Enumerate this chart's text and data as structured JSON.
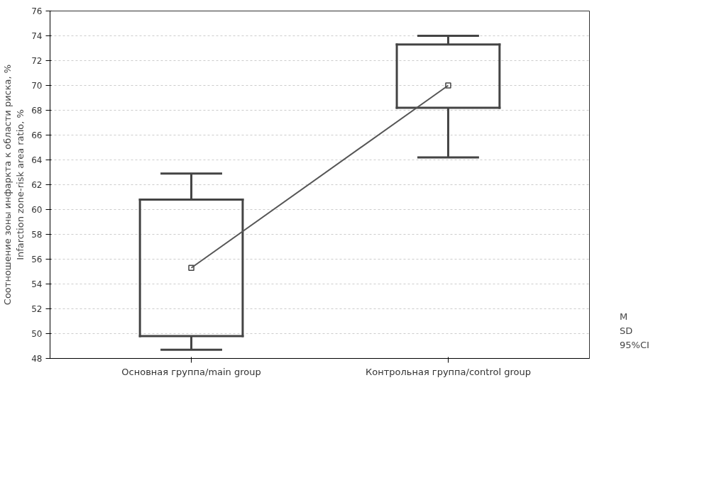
{
  "chart_data": {
    "type": "box",
    "ylabel": "Соотношение зоны инфаркта к области риска, %\nInfarction zone-risk area ratio, %",
    "categories": [
      "Основная группа/main group",
      "Контрольная группа/control group"
    ],
    "boxes": [
      {
        "low": 48.7,
        "q1": 49.8,
        "median": 55.3,
        "q3": 60.8,
        "high": 62.9
      },
      {
        "low": 64.2,
        "q1": 68.2,
        "median": 70.0,
        "q3": 73.3,
        "high": 74.0
      }
    ],
    "series": [
      {
        "name": "M",
        "type": "line",
        "color": "#555555",
        "values": [
          55.3,
          70.0
        ]
      }
    ],
    "color": "#444444",
    "ylim": [
      48,
      76
    ],
    "yticks": [
      48,
      50,
      52,
      54,
      56,
      58,
      60,
      62,
      64,
      66,
      68,
      70,
      72,
      74,
      76
    ],
    "grid": "y",
    "legend": "bottom right",
    "annotations": [
      "SD",
      "95%CI"
    ]
  }
}
